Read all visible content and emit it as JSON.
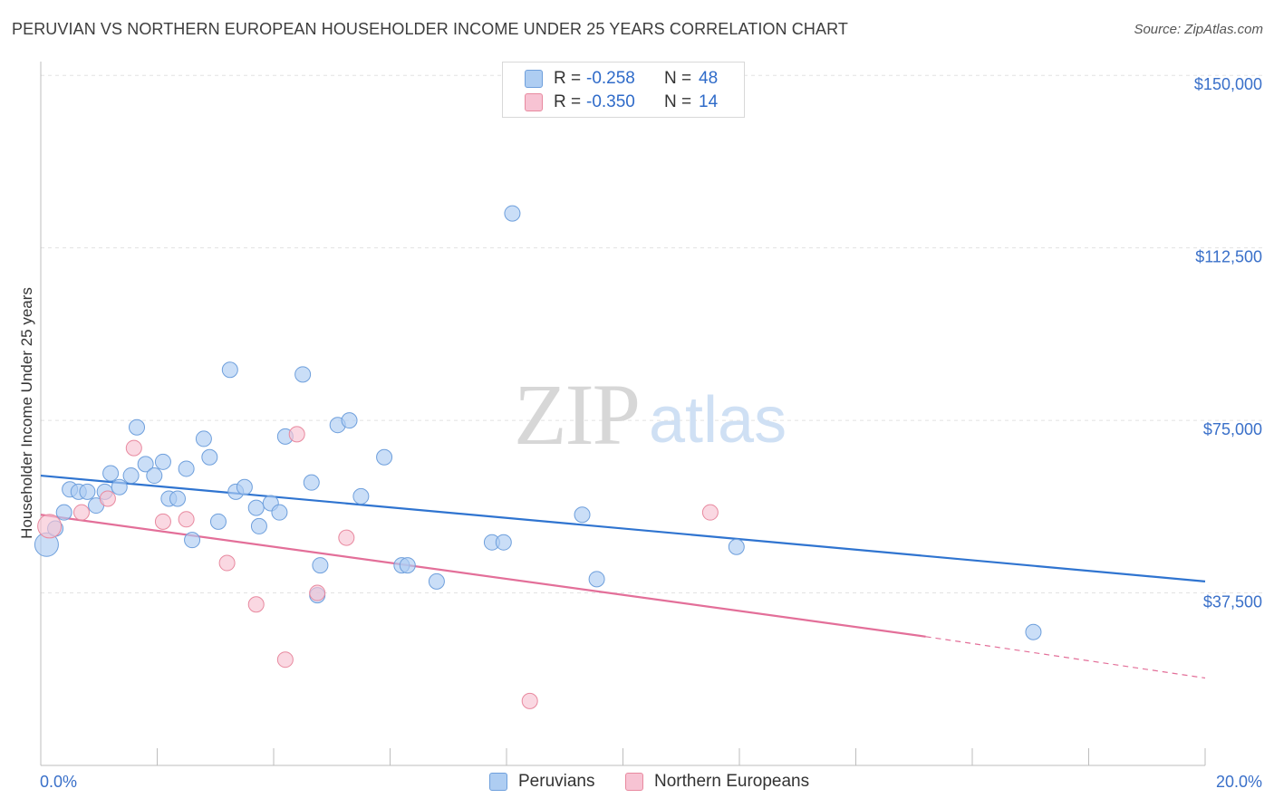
{
  "title": "PERUVIAN VS NORTHERN EUROPEAN HOUSEHOLDER INCOME UNDER 25 YEARS CORRELATION CHART",
  "source": "Source: ZipAtlas.com",
  "watermark": {
    "zip": "ZIP",
    "atlas": "atlas"
  },
  "legend_top": {
    "rows": [
      {
        "r_label": "R =",
        "r_value": "-0.258",
        "n_label": "N =",
        "n_value": "48"
      },
      {
        "r_label": "R =",
        "r_value": "-0.350",
        "n_label": "N =",
        "n_value": "14"
      }
    ]
  },
  "legend_bottom": {
    "items": [
      "Peruvians",
      "Northern Europeans"
    ]
  },
  "colors": {
    "blue_fill": "#aecdf2",
    "blue_stroke": "#6e9fdc",
    "blue_line": "#2f74d0",
    "pink_fill": "#f7c3d3",
    "pink_stroke": "#e8899f",
    "pink_line": "#e36f99",
    "tick_text": "#3a70c9",
    "grid": "#e2e2e2"
  },
  "chart_data": {
    "type": "scatter",
    "title": "PERUVIAN VS NORTHERN EUROPEAN HOUSEHOLDER INCOME UNDER 25 YEARS CORRELATION CHART",
    "xlabel": "",
    "ylabel": "Householder Income Under 25 years",
    "xlim": [
      0,
      20
    ],
    "ylim": [
      0,
      153000
    ],
    "x_unit": "%",
    "x_tick_labels": [
      "0.0%",
      "20.0%"
    ],
    "y_ticks": [
      37500,
      75000,
      112500,
      150000
    ],
    "y_tick_labels": [
      "$37,500",
      "$75,000",
      "$112,500",
      "$150,000"
    ],
    "grid": true,
    "legend_position": "top-center",
    "series": [
      {
        "name": "Peruvians",
        "r": -0.258,
        "n": 48,
        "trend": {
          "x": [
            0,
            20
          ],
          "y": [
            63000,
            40000
          ]
        },
        "points": [
          [
            0.1,
            48000
          ],
          [
            0.25,
            51500
          ],
          [
            0.4,
            55000
          ],
          [
            0.5,
            60000
          ],
          [
            0.65,
            59500
          ],
          [
            0.8,
            59500
          ],
          [
            0.95,
            56500
          ],
          [
            1.1,
            59500
          ],
          [
            1.2,
            63500
          ],
          [
            1.35,
            60500
          ],
          [
            1.55,
            63000
          ],
          [
            1.65,
            73500
          ],
          [
            1.8,
            65500
          ],
          [
            1.95,
            63000
          ],
          [
            2.1,
            66000
          ],
          [
            2.2,
            58000
          ],
          [
            2.35,
            58000
          ],
          [
            2.5,
            64500
          ],
          [
            2.6,
            49000
          ],
          [
            2.8,
            71000
          ],
          [
            2.9,
            67000
          ],
          [
            3.05,
            53000
          ],
          [
            3.25,
            86000
          ],
          [
            3.35,
            59500
          ],
          [
            3.5,
            60500
          ],
          [
            3.7,
            56000
          ],
          [
            3.75,
            52000
          ],
          [
            3.95,
            57000
          ],
          [
            4.1,
            55000
          ],
          [
            4.2,
            71500
          ],
          [
            4.5,
            85000
          ],
          [
            4.65,
            61500
          ],
          [
            4.75,
            37000
          ],
          [
            4.8,
            43500
          ],
          [
            5.1,
            74000
          ],
          [
            5.3,
            75000
          ],
          [
            5.5,
            58500
          ],
          [
            5.9,
            67000
          ],
          [
            6.2,
            43500
          ],
          [
            6.3,
            43500
          ],
          [
            6.8,
            40000
          ],
          [
            7.75,
            48500
          ],
          [
            7.95,
            48500
          ],
          [
            8.1,
            120000
          ],
          [
            9.3,
            54500
          ],
          [
            9.55,
            40500
          ],
          [
            11.95,
            47500
          ],
          [
            17.05,
            29000
          ]
        ]
      },
      {
        "name": "Northern Europeans",
        "r": -0.35,
        "n": 14,
        "trend": {
          "x": [
            0,
            15.2,
            20
          ],
          "y": [
            54500,
            28000,
            19000
          ]
        },
        "points": [
          [
            0.15,
            52000
          ],
          [
            0.7,
            55000
          ],
          [
            1.15,
            58000
          ],
          [
            1.6,
            69000
          ],
          [
            2.1,
            53000
          ],
          [
            2.5,
            53500
          ],
          [
            3.2,
            44000
          ],
          [
            3.7,
            35000
          ],
          [
            4.2,
            23000
          ],
          [
            4.4,
            72000
          ],
          [
            4.75,
            37500
          ],
          [
            5.25,
            49500
          ],
          [
            8.4,
            14000
          ],
          [
            11.5,
            55000
          ]
        ]
      }
    ]
  }
}
